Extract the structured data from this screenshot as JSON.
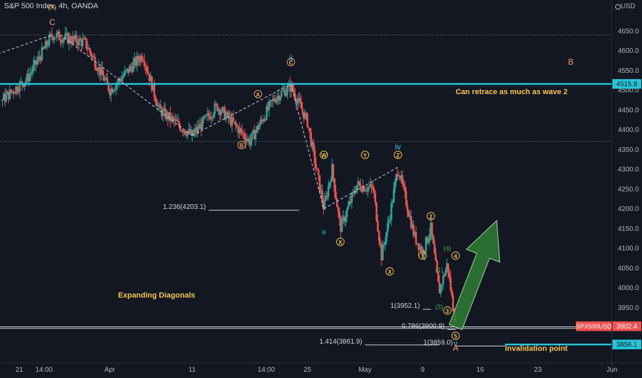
{
  "header": {
    "title": "S&P 500 Index, 4h, OANDA",
    "currency": "USD"
  },
  "chart_data": {
    "type": "candlestick",
    "price_axis": {
      "range": [
        3830,
        4700
      ],
      "ticks": [
        {
          "value": 4650,
          "label": "4650.0"
        },
        {
          "value": 4600,
          "label": "4600.0"
        },
        {
          "value": 4550,
          "label": "4550.0"
        },
        {
          "value": 4500,
          "label": "4500.0"
        },
        {
          "value": 4450,
          "label": "4450.0"
        },
        {
          "value": 4400,
          "label": "4400.0"
        },
        {
          "value": 4350,
          "label": "4350.0"
        },
        {
          "value": 4300,
          "label": "4300.0"
        },
        {
          "value": 4250,
          "label": "4250.0"
        },
        {
          "value": 4200,
          "label": "4200.0"
        },
        {
          "value": 4150,
          "label": "4150.0"
        },
        {
          "value": 4100,
          "label": "4100.0"
        },
        {
          "value": 4050,
          "label": "4050.0"
        },
        {
          "value": 4000,
          "label": "4000.0"
        },
        {
          "value": 3950,
          "label": "3950.0"
        },
        {
          "value": 3900,
          "label": "3900.0"
        }
      ]
    },
    "time_axis": {
      "labels": [
        "21",
        "14:00",
        "Apr",
        "11",
        "14:00",
        "25",
        "May",
        "9",
        "16",
        "23",
        "Jun"
      ],
      "label_dates": [
        "2022-03-21",
        "2022-03-24",
        "2022-04-01",
        "2022-04-11",
        "2022-04-20",
        "2022-04-25",
        "2022-05-02",
        "2022-05-09",
        "2022-05-16",
        "2022-05-23",
        "2022-06-01"
      ]
    },
    "price_tags": [
      {
        "value": 4515.8,
        "label": "4515.8",
        "color": "#26c6da"
      },
      {
        "value": 3902.4,
        "label": "3902.4",
        "symbol": "SPX500USD",
        "color": "#ef5350"
      },
      {
        "value": 3856.1,
        "label": "3856.1",
        "color": "#26c6da"
      }
    ],
    "horizontal_lines": [
      {
        "price": 4640,
        "style": "dotted",
        "color": "#787b86"
      },
      {
        "price": 4370,
        "style": "dotted",
        "color": "#787b86"
      },
      {
        "price": 4515.8,
        "style": "solid",
        "color": "#26c6da"
      },
      {
        "price": 3856.1,
        "style": "solid",
        "color": "#26c6da",
        "from": "2022-05-19"
      },
      {
        "price": 3900.9,
        "style": "solid",
        "color": "#d1d4dc"
      },
      {
        "price": 3897.0,
        "style": "solid",
        "color": "#d1d4dc"
      }
    ],
    "fib_levels": [
      {
        "label": "1.236(4203.1)",
        "price": 4203.1,
        "x_from": "2022-04-13",
        "x_to": "2022-04-24"
      },
      {
        "label": "1(3952.1)",
        "price": 3952.1,
        "x_from": "2022-05-09",
        "x_to": "2022-05-10"
      },
      {
        "label": "0.786(3900.9)",
        "price": 3900.9,
        "x_from": "2022-05-12",
        "x_to": "2022-05-13"
      },
      {
        "label": "1.414(3861.9)",
        "price": 3861.9,
        "x_from": "2022-05-02",
        "x_to": "2022-05-11"
      },
      {
        "label": "1(3859.0)",
        "price": 3859.0,
        "x_from": "2022-05-13",
        "x_to": "2022-05-19"
      }
    ],
    "wave_labels": [
      {
        "text": "(X)",
        "color": "#f7c548",
        "date": "2022-03-25",
        "price": 4705
      },
      {
        "text": "C",
        "color": "#f0a35e",
        "date": "2022-03-25",
        "price": 4665
      },
      {
        "text": "ii",
        "color": "#26c6da",
        "date": "2022-04-23",
        "price": 4575
      },
      {
        "text": "C",
        "circle": true,
        "color": "#f0a35e",
        "date": "2022-04-23",
        "price": 4565
      },
      {
        "text": "B",
        "color": "#f0a35e",
        "date": "2022-05-27",
        "price": 4565
      },
      {
        "text": "A",
        "circle": true,
        "color": "#f0a35e",
        "date": "2022-04-19",
        "price": 4484
      },
      {
        "text": "i",
        "color": "#26c6da",
        "date": "2022-04-11",
        "price": 4370
      },
      {
        "text": "B",
        "circle": true,
        "color": "#f0a35e",
        "date": "2022-04-17",
        "price": 4355
      },
      {
        "text": "W",
        "circle": true,
        "color": "#f7c548",
        "date": "2022-04-27",
        "price": 4330
      },
      {
        "text": "Y",
        "circle": true,
        "color": "#f7c548",
        "date": "2022-05-02",
        "price": 4330
      },
      {
        "text": "iv",
        "color": "#26c6da",
        "date": "2022-05-06",
        "price": 4350
      },
      {
        "text": "Z",
        "circle": true,
        "color": "#f7c548",
        "date": "2022-05-06",
        "price": 4330
      },
      {
        "text": "iii",
        "color": "#26c6da",
        "date": "2022-04-27",
        "price": 4135
      },
      {
        "text": "X",
        "circle": true,
        "color": "#f7c548",
        "date": "2022-04-29",
        "price": 4110
      },
      {
        "text": "X",
        "circle": true,
        "color": "#f7c548",
        "date": "2022-05-05",
        "price": 4035
      },
      {
        "text": "2",
        "circle": true,
        "color": "#f7c548",
        "date": "2022-05-10",
        "price": 4175
      },
      {
        "text": "(2)",
        "color": "#4caf50",
        "date": "2022-05-10",
        "price": 4122
      },
      {
        "text": "1",
        "circle": true,
        "color": "#f7c548",
        "date": "2022-05-09",
        "price": 4075
      },
      {
        "text": "(4)",
        "color": "#4caf50",
        "date": "2022-05-12",
        "price": 4094
      },
      {
        "text": "4",
        "circle": true,
        "color": "#f7c548",
        "date": "2022-05-13",
        "price": 4075
      },
      {
        "text": "(1)",
        "color": "#4caf50",
        "date": "2022-05-11",
        "price": 4040
      },
      {
        "text": "(3)",
        "color": "#4caf50",
        "date": "2022-05-11",
        "price": 3946
      },
      {
        "text": "3",
        "circle": true,
        "color": "#f7c548",
        "date": "2022-05-12",
        "price": 3936
      },
      {
        "text": "5",
        "circle": true,
        "color": "#f7c548",
        "date": "2022-05-13",
        "price": 3872
      },
      {
        "text": "v",
        "color": "#26c6da",
        "date": "2022-05-13",
        "price": 3852
      },
      {
        "text": "A",
        "color": "#f0a35e",
        "date": "2022-05-13",
        "price": 3840
      }
    ],
    "annotations": [
      {
        "text": "Can retrace as much as wave 2",
        "color": "#f7c548",
        "date": "2022-05-13",
        "price": 4490
      },
      {
        "text": "Expanding Diagonals",
        "color": "#f7c548",
        "date": "2022-04-02",
        "price": 3975
      },
      {
        "text": "Invalidation point",
        "color": "#f7c548",
        "date": "2022-05-19",
        "price": 3840
      }
    ],
    "dashed_trendlines": [
      {
        "from": [
          "2022-03-14",
          4560
        ],
        "to": [
          "2022-03-25",
          4640
        ]
      },
      {
        "from": [
          "2022-03-26",
          4640
        ],
        "to": [
          "2022-04-11",
          4385
        ]
      },
      {
        "from": [
          "2022-04-11",
          4385
        ],
        "to": [
          "2022-04-23",
          4515
        ]
      },
      {
        "from": [
          "2022-04-23",
          4515
        ],
        "to": [
          "2022-04-27",
          4200
        ]
      },
      {
        "from": [
          "2022-04-27",
          4200
        ],
        "to": [
          "2022-05-06",
          4305
        ]
      }
    ],
    "arrow": {
      "from": [
        "2022-05-13",
        3900
      ],
      "to": [
        "2022-05-18",
        4170
      ],
      "color": "#2e7d32"
    }
  }
}
